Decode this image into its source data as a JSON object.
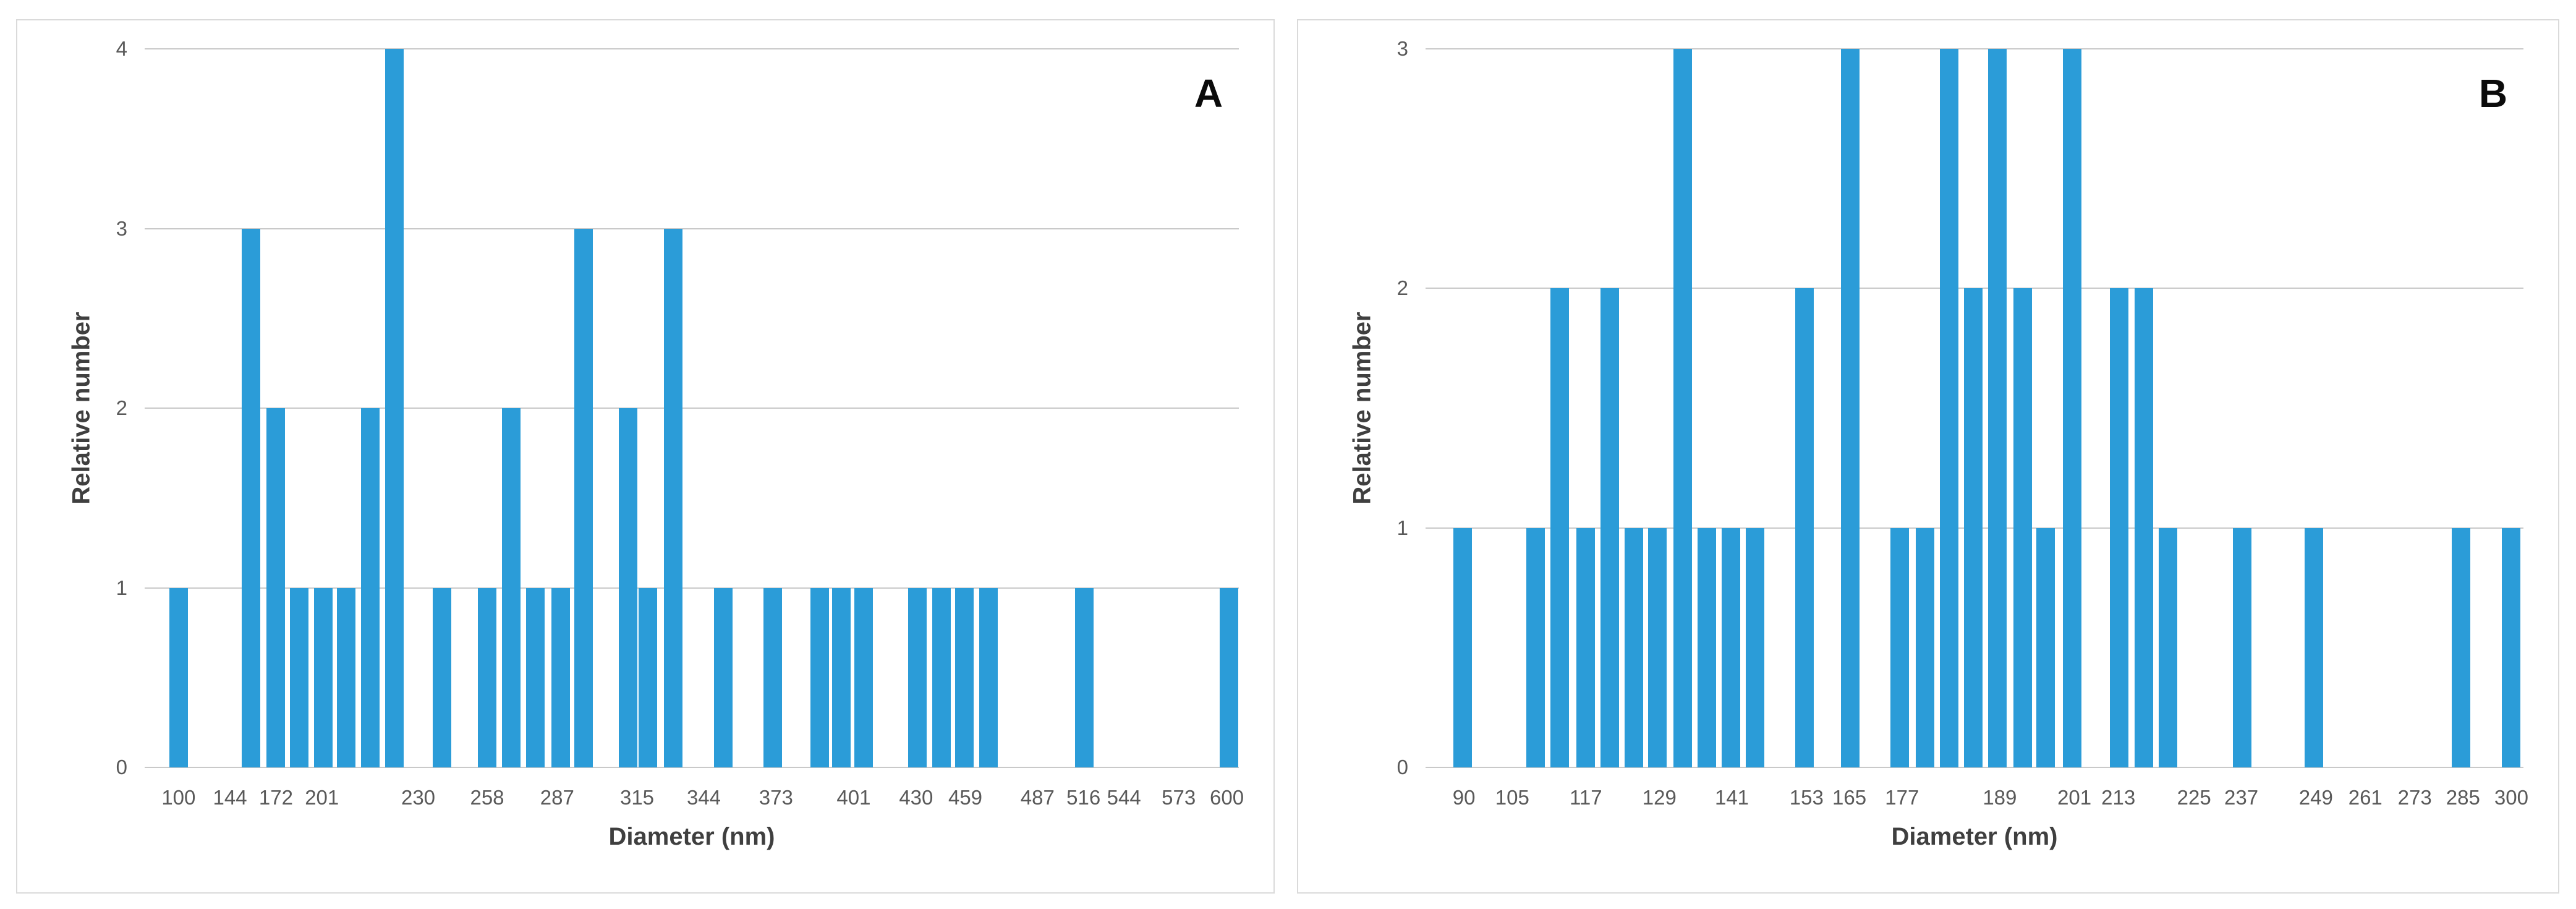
{
  "figure": {
    "description": "Two-panel particle size distribution histograms",
    "panel_count": 2
  },
  "chart_data": [
    {
      "type": "bar",
      "panel_label": "A",
      "title": "",
      "xlabel": "Diameter (nm)",
      "ylabel": "Relative number",
      "ylim": [
        0,
        4
      ],
      "yticks": [
        0,
        1,
        2,
        3,
        4
      ],
      "grid": "horizontal",
      "legend": "none",
      "bar_color": "#2B9CD8",
      "gridline_color": "#C9C9C9",
      "axis_text_color": "#595959",
      "axis_title_color": "#3F3F3F",
      "x_tick_labels": [
        "100",
        "144",
        "172",
        "201",
        "230",
        "258",
        "287",
        "315",
        "344",
        "373",
        "401",
        "430",
        "459",
        "487",
        "516",
        "544",
        "573",
        "600"
      ],
      "x_tick_positions": [
        0.031,
        0.078,
        0.12,
        0.162,
        0.25,
        0.313,
        0.377,
        0.45,
        0.511,
        0.577,
        0.648,
        0.705,
        0.75,
        0.816,
        0.858,
        0.895,
        0.945,
        0.989
      ],
      "bars": [
        {
          "x_frac": 0.031,
          "count": 1
        },
        {
          "x_frac": 0.097,
          "count": 3
        },
        {
          "x_frac": 0.12,
          "count": 2
        },
        {
          "x_frac": 0.141,
          "count": 1
        },
        {
          "x_frac": 0.163,
          "count": 1
        },
        {
          "x_frac": 0.184,
          "count": 1
        },
        {
          "x_frac": 0.206,
          "count": 2
        },
        {
          "x_frac": 0.228,
          "count": 4
        },
        {
          "x_frac": 0.272,
          "count": 1
        },
        {
          "x_frac": 0.313,
          "count": 1
        },
        {
          "x_frac": 0.335,
          "count": 2
        },
        {
          "x_frac": 0.357,
          "count": 1
        },
        {
          "x_frac": 0.38,
          "count": 1
        },
        {
          "x_frac": 0.401,
          "count": 3
        },
        {
          "x_frac": 0.442,
          "count": 2
        },
        {
          "x_frac": 0.46,
          "count": 1
        },
        {
          "x_frac": 0.483,
          "count": 3
        },
        {
          "x_frac": 0.529,
          "count": 1
        },
        {
          "x_frac": 0.574,
          "count": 1
        },
        {
          "x_frac": 0.617,
          "count": 1
        },
        {
          "x_frac": 0.637,
          "count": 1
        },
        {
          "x_frac": 0.657,
          "count": 1
        },
        {
          "x_frac": 0.706,
          "count": 1
        },
        {
          "x_frac": 0.728,
          "count": 1
        },
        {
          "x_frac": 0.749,
          "count": 1
        },
        {
          "x_frac": 0.771,
          "count": 1
        },
        {
          "x_frac": 0.859,
          "count": 1
        },
        {
          "x_frac": 0.991,
          "count": 1
        }
      ]
    },
    {
      "type": "bar",
      "panel_label": "B",
      "title": "",
      "xlabel": "Diameter (nm)",
      "ylabel": "Relative number",
      "ylim": [
        0,
        3
      ],
      "yticks": [
        0,
        1,
        2,
        3
      ],
      "grid": "horizontal",
      "legend": "none",
      "bar_color": "#2B9CD8",
      "gridline_color": "#C9C9C9",
      "axis_text_color": "#595959",
      "axis_title_color": "#3F3F3F",
      "x_tick_labels": [
        "90",
        "105",
        "117",
        "129",
        "141",
        "153",
        "165",
        "177",
        "189",
        "201",
        "213",
        "225",
        "237",
        "249",
        "261",
        "273",
        "285",
        "300"
      ],
      "x_tick_positions": [
        0.035,
        0.079,
        0.146,
        0.213,
        0.279,
        0.347,
        0.386,
        0.434,
        0.523,
        0.591,
        0.631,
        0.7,
        0.743,
        0.811,
        0.856,
        0.901,
        0.945,
        0.989
      ],
      "bars": [
        {
          "x_frac": 0.034,
          "count": 1
        },
        {
          "x_frac": 0.1,
          "count": 1
        },
        {
          "x_frac": 0.122,
          "count": 2
        },
        {
          "x_frac": 0.146,
          "count": 1
        },
        {
          "x_frac": 0.168,
          "count": 2
        },
        {
          "x_frac": 0.19,
          "count": 1
        },
        {
          "x_frac": 0.211,
          "count": 1
        },
        {
          "x_frac": 0.234,
          "count": 3
        },
        {
          "x_frac": 0.256,
          "count": 1
        },
        {
          "x_frac": 0.278,
          "count": 1
        },
        {
          "x_frac": 0.3,
          "count": 1
        },
        {
          "x_frac": 0.345,
          "count": 2
        },
        {
          "x_frac": 0.387,
          "count": 3
        },
        {
          "x_frac": 0.432,
          "count": 1
        },
        {
          "x_frac": 0.455,
          "count": 1
        },
        {
          "x_frac": 0.477,
          "count": 3
        },
        {
          "x_frac": 0.499,
          "count": 2
        },
        {
          "x_frac": 0.521,
          "count": 3
        },
        {
          "x_frac": 0.544,
          "count": 2
        },
        {
          "x_frac": 0.565,
          "count": 1
        },
        {
          "x_frac": 0.589,
          "count": 3
        },
        {
          "x_frac": 0.632,
          "count": 2
        },
        {
          "x_frac": 0.654,
          "count": 2
        },
        {
          "x_frac": 0.676,
          "count": 1
        },
        {
          "x_frac": 0.744,
          "count": 1
        },
        {
          "x_frac": 0.809,
          "count": 1
        },
        {
          "x_frac": 0.943,
          "count": 1
        },
        {
          "x_frac": 0.989,
          "count": 1
        }
      ]
    }
  ]
}
